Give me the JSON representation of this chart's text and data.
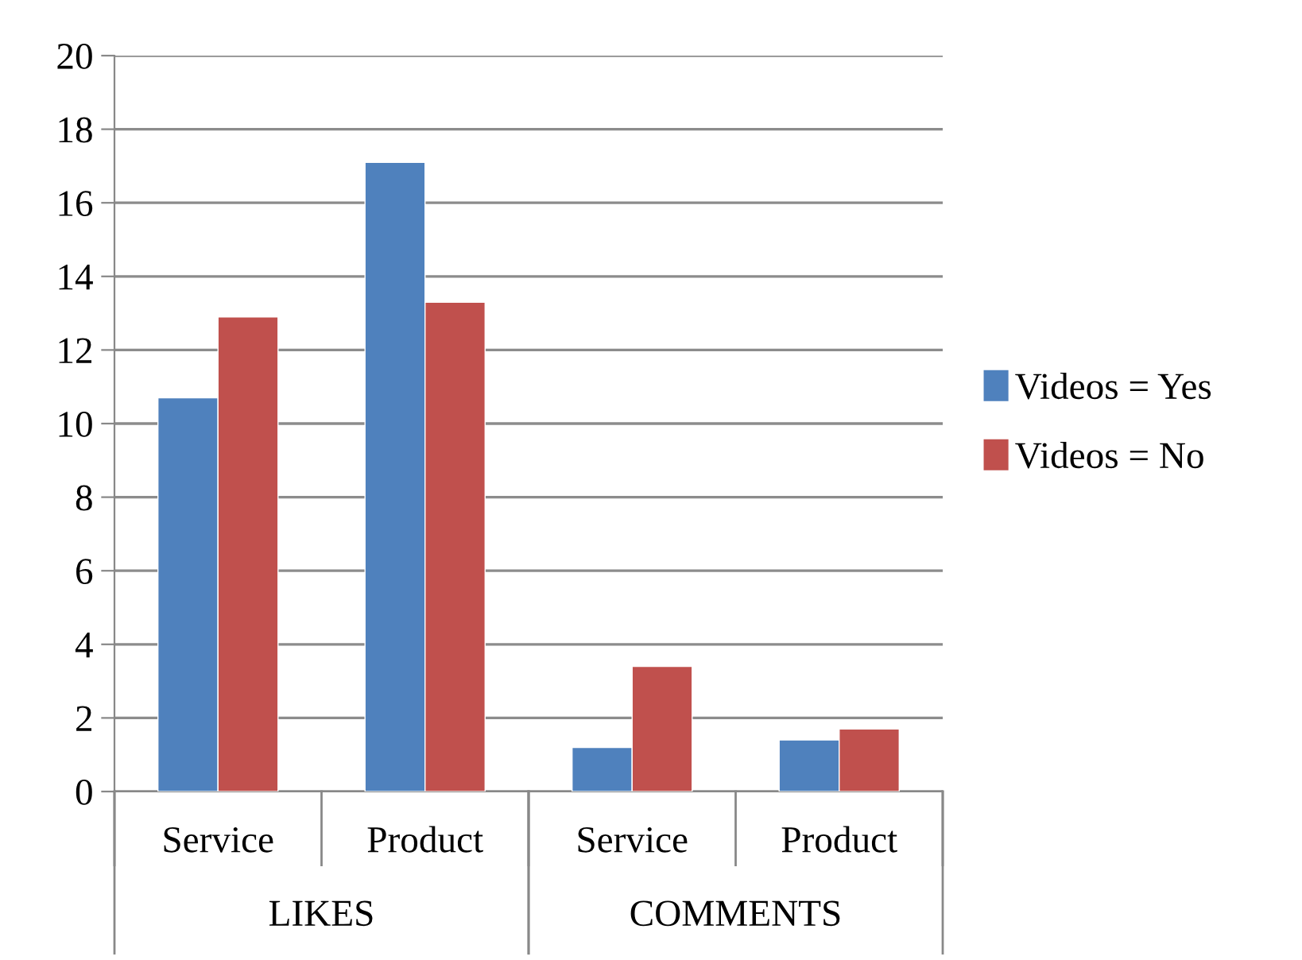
{
  "chart_data": {
    "type": "bar",
    "categories": [
      "Service",
      "Product",
      "Service",
      "Product"
    ],
    "series": [
      {
        "name": "Videos = Yes",
        "color": "#4f81bd",
        "values": [
          10.7,
          17.1,
          1.2,
          1.4
        ]
      },
      {
        "name": "Videos = No",
        "color": "#c0504d",
        "values": [
          12.9,
          13.3,
          3.4,
          1.7
        ]
      }
    ],
    "annotations": [
      "LIKES",
      "COMMENTS"
    ],
    "ylim": [
      0,
      20
    ],
    "yticks": [
      0,
      2,
      4,
      6,
      8,
      10,
      12,
      14,
      16,
      18,
      20
    ],
    "grid": "y",
    "legend": "right"
  }
}
